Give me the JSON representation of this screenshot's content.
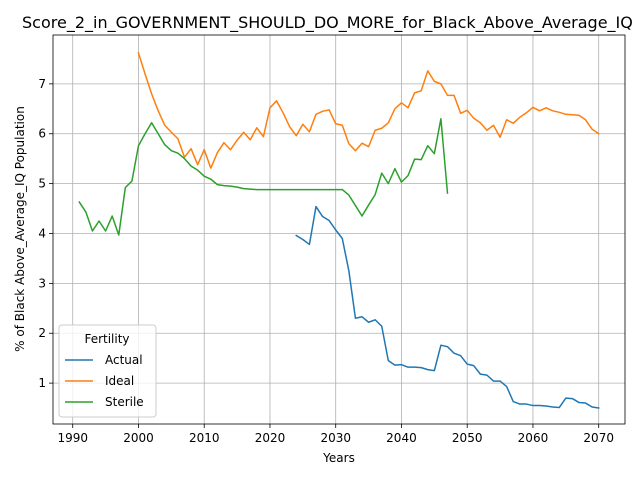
{
  "chart_data": {
    "type": "line",
    "title": "Score_2_in_GOVERNMENT_SHOULD_DO_MORE_for_Black_Above_Average_IQ",
    "xlabel": "Years",
    "ylabel": "% of Black Above_Average_IQ Population",
    "xlim": [
      1987,
      2074
    ],
    "ylim": [
      0.18,
      7.98
    ],
    "xticks": [
      1990,
      2000,
      2010,
      2020,
      2030,
      2040,
      2050,
      2060,
      2070
    ],
    "yticks": [
      1,
      2,
      3,
      4,
      5,
      6,
      7
    ],
    "grid": true,
    "legend": {
      "title": "Fertility",
      "placement": "lower-left"
    },
    "series": [
      {
        "name": "Actual",
        "color": "#1f77b4",
        "x": [
          2024,
          2025,
          2026,
          2027,
          2028,
          2029,
          2030,
          2031,
          2032,
          2033,
          2034,
          2035,
          2036,
          2037,
          2038,
          2039,
          2040,
          2041,
          2042,
          2043,
          2044,
          2045,
          2046,
          2047,
          2048,
          2049,
          2050,
          2051,
          2052,
          2053,
          2054,
          2055,
          2056,
          2057,
          2058,
          2059,
          2060,
          2061,
          2062,
          2063,
          2064,
          2065,
          2066,
          2067,
          2068,
          2069,
          2070
        ],
        "y": [
          3.96,
          3.88,
          3.78,
          4.54,
          4.34,
          4.26,
          4.07,
          3.9,
          3.25,
          2.3,
          2.33,
          2.22,
          2.27,
          2.14,
          1.45,
          1.36,
          1.37,
          1.32,
          1.32,
          1.31,
          1.27,
          1.25,
          1.76,
          1.73,
          1.6,
          1.55,
          1.38,
          1.35,
          1.18,
          1.16,
          1.04,
          1.04,
          0.93,
          0.63,
          0.58,
          0.58,
          0.55,
          0.55,
          0.54,
          0.52,
          0.51,
          0.7,
          0.69,
          0.61,
          0.6,
          0.52,
          0.5
        ]
      },
      {
        "name": "Ideal",
        "color": "#ff7f0e",
        "x": [
          2000,
          2001,
          2002,
          2003,
          2004,
          2005,
          2006,
          2007,
          2008,
          2009,
          2010,
          2011,
          2012,
          2013,
          2014,
          2015,
          2016,
          2017,
          2018,
          2019,
          2020,
          2021,
          2022,
          2023,
          2024,
          2025,
          2026,
          2027,
          2028,
          2029,
          2030,
          2031,
          2032,
          2033,
          2034,
          2035,
          2036,
          2037,
          2038,
          2039,
          2040,
          2041,
          2042,
          2043,
          2044,
          2045,
          2046,
          2047,
          2048,
          2049,
          2050,
          2051,
          2052,
          2053,
          2054,
          2055,
          2056,
          2057,
          2058,
          2059,
          2060,
          2061,
          2062,
          2063,
          2064,
          2065,
          2066,
          2067,
          2068,
          2069,
          2070
        ],
        "y": [
          7.62,
          7.2,
          6.8,
          6.46,
          6.17,
          6.03,
          5.9,
          5.53,
          5.7,
          5.38,
          5.68,
          5.31,
          5.62,
          5.82,
          5.68,
          5.87,
          6.03,
          5.88,
          6.12,
          5.94,
          6.52,
          6.66,
          6.42,
          6.14,
          5.96,
          6.19,
          6.04,
          6.39,
          6.45,
          6.48,
          6.2,
          6.17,
          5.8,
          5.66,
          5.81,
          5.74,
          6.07,
          6.11,
          6.22,
          6.5,
          6.62,
          6.52,
          6.82,
          6.86,
          7.26,
          7.05,
          7.0,
          6.77,
          6.77,
          6.41,
          6.47,
          6.31,
          6.22,
          6.07,
          6.17,
          5.93,
          6.28,
          6.21,
          6.33,
          6.42,
          6.53,
          6.46,
          6.52,
          6.46,
          6.43,
          6.39,
          6.38,
          6.37,
          6.28,
          6.09,
          6.0
        ]
      },
      {
        "name": "Sterile",
        "color": "#2ca02c",
        "x": [
          1991,
          1992,
          1993,
          1994,
          1995,
          1996,
          1997,
          1998,
          1999,
          2000,
          2001,
          2002,
          2003,
          2004,
          2005,
          2006,
          2007,
          2008,
          2009,
          2010,
          2011,
          2012,
          2013,
          2014,
          2015,
          2016,
          2017,
          2018,
          2019,
          2020,
          2021,
          2022,
          2023,
          2024,
          2025,
          2026,
          2027,
          2028,
          2029,
          2030,
          2031,
          2032,
          2033,
          2034,
          2035,
          2036,
          2037,
          2038,
          2039,
          2040,
          2041,
          2042,
          2043,
          2044,
          2045,
          2046,
          2047
        ],
        "y": [
          4.63,
          4.43,
          4.05,
          4.25,
          4.05,
          4.35,
          3.97,
          4.92,
          5.05,
          5.76,
          6.0,
          6.22,
          6.0,
          5.78,
          5.66,
          5.61,
          5.5,
          5.35,
          5.27,
          5.15,
          5.09,
          4.98,
          4.96,
          4.95,
          4.93,
          4.9,
          4.89,
          4.88,
          4.88,
          4.88,
          4.88,
          4.88,
          4.88,
          4.88,
          4.88,
          4.88,
          4.88,
          4.88,
          4.88,
          4.88,
          4.88,
          4.77,
          4.56,
          4.35,
          4.57,
          4.78,
          5.21,
          5.0,
          5.3,
          5.03,
          5.16,
          5.49,
          5.48,
          5.76,
          5.6,
          6.3,
          4.81
        ]
      }
    ]
  }
}
